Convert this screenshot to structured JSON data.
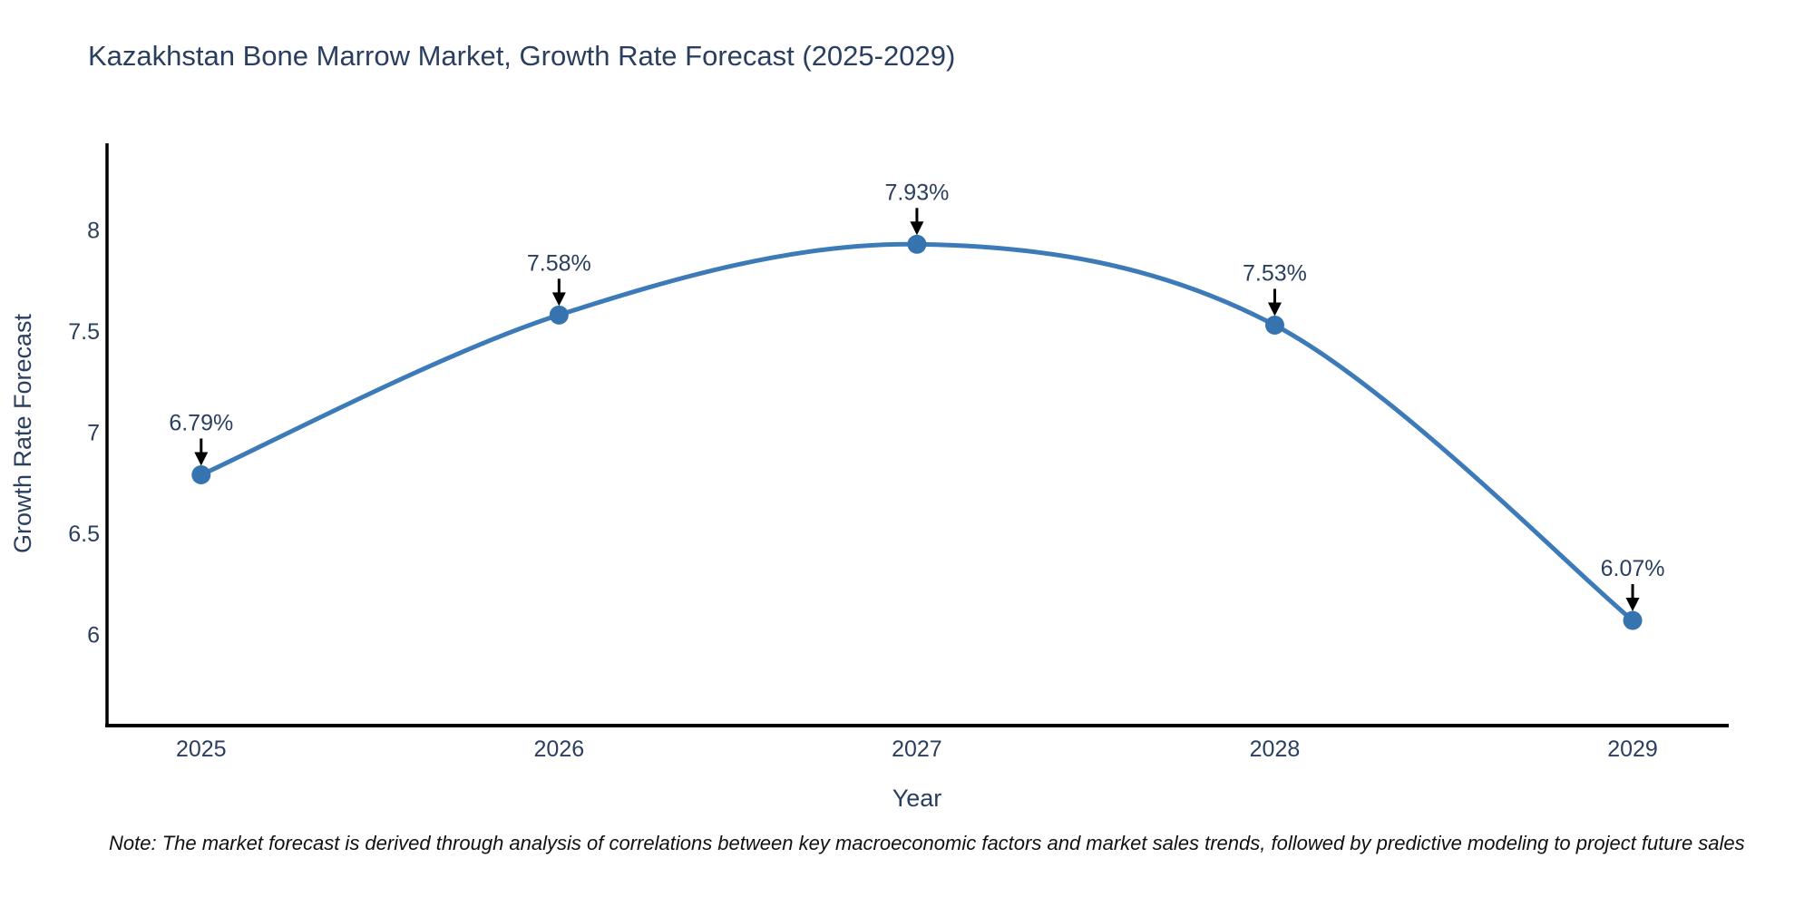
{
  "title": {
    "text": "Kazakhstan Bone Marrow Market, Growth Rate Forecast (2025-2029)",
    "color": "#2a3f5f"
  },
  "note": {
    "text": "Note: The market forecast is derived through analysis of correlations between key macroeconomic factors and market sales trends, followed by predictive modeling to project future sales"
  },
  "chart_data": {
    "type": "line",
    "line_shape": "spline",
    "title": "Kazakhstan Bone Marrow Market, Growth Rate Forecast (2025-2029)",
    "xlabel": "Year",
    "ylabel": "Growth Rate Forecast",
    "x": [
      2025,
      2026,
      2027,
      2028,
      2029
    ],
    "values": [
      6.79,
      7.58,
      7.93,
      7.53,
      6.07
    ],
    "point_labels": [
      "6.79%",
      "7.58%",
      "7.93%",
      "7.53%",
      "6.07%"
    ],
    "x_tick_labels": [
      "2025",
      "2026",
      "2027",
      "2028",
      "2029"
    ],
    "x_tick_values": [
      2025,
      2026,
      2027,
      2028,
      2029
    ],
    "y_tick_labels": [
      "8",
      "7.5",
      "7",
      "6.5",
      "6"
    ],
    "y_tick_values": [
      8,
      7.5,
      7,
      6.5,
      6
    ],
    "xlim": [
      2024.737,
      2029.266
    ],
    "ylim": [
      5.55,
      8.42
    ],
    "grid": false,
    "legend": "none",
    "background": "#ffffff",
    "line_color": "#3d7ab8",
    "marker_color": "#3674b0",
    "axis_color": "#000000",
    "text_color": "#2a3f5f",
    "annotation_arrow_color": "#000000"
  }
}
